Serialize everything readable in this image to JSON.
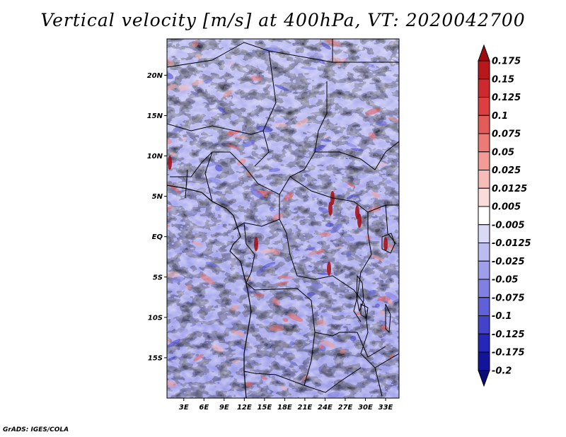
{
  "title": "Vertical velocity [m/s] at 400hPa, VT: 2020042700",
  "credit": "GrADS: IGES/COLA",
  "map": {
    "variable": "Vertical velocity",
    "units": "m/s",
    "level": "400hPa",
    "valid_time": "2020042700",
    "lat_labels": [
      "20N",
      "15N",
      "10N",
      "5N",
      "EQ",
      "5S",
      "10S",
      "15S"
    ],
    "lat_values": [
      20,
      15,
      10,
      5,
      0,
      -5,
      -10,
      -15
    ],
    "lon_labels": [
      "3E",
      "6E",
      "9E",
      "12E",
      "15E",
      "18E",
      "21E",
      "24E",
      "27E",
      "30E",
      "33E"
    ],
    "lon_values": [
      3,
      6,
      9,
      12,
      15,
      18,
      21,
      24,
      27,
      30,
      33
    ],
    "lat_range": [
      -20,
      24.5
    ],
    "lon_range": [
      0.5,
      35
    ]
  },
  "colorbar": {
    "labels": [
      "0.175",
      "0.15",
      "0.125",
      "0.1",
      "0.075",
      "0.05",
      "0.025",
      "0.0125",
      "0.005",
      "-0.005",
      "-0.0125",
      "-0.025",
      "-0.05",
      "-0.075",
      "-0.1",
      "-0.125",
      "-0.175",
      "-0.2"
    ],
    "colors": [
      "#a00a0f",
      "#b8171c",
      "#cc2a2e",
      "#dd3f40",
      "#e45c5a",
      "#ec7b78",
      "#f29b97",
      "#f7bbb8",
      "#fbdcda",
      "#ffffff",
      "#dadaf6",
      "#bcbcf0",
      "#9e9eea",
      "#8080e3",
      "#6060d8",
      "#4242cb",
      "#2626b8",
      "#14149a",
      "#0b0b7a"
    ]
  },
  "colors": {
    "frame": "#000000",
    "background": "#ffffff"
  }
}
